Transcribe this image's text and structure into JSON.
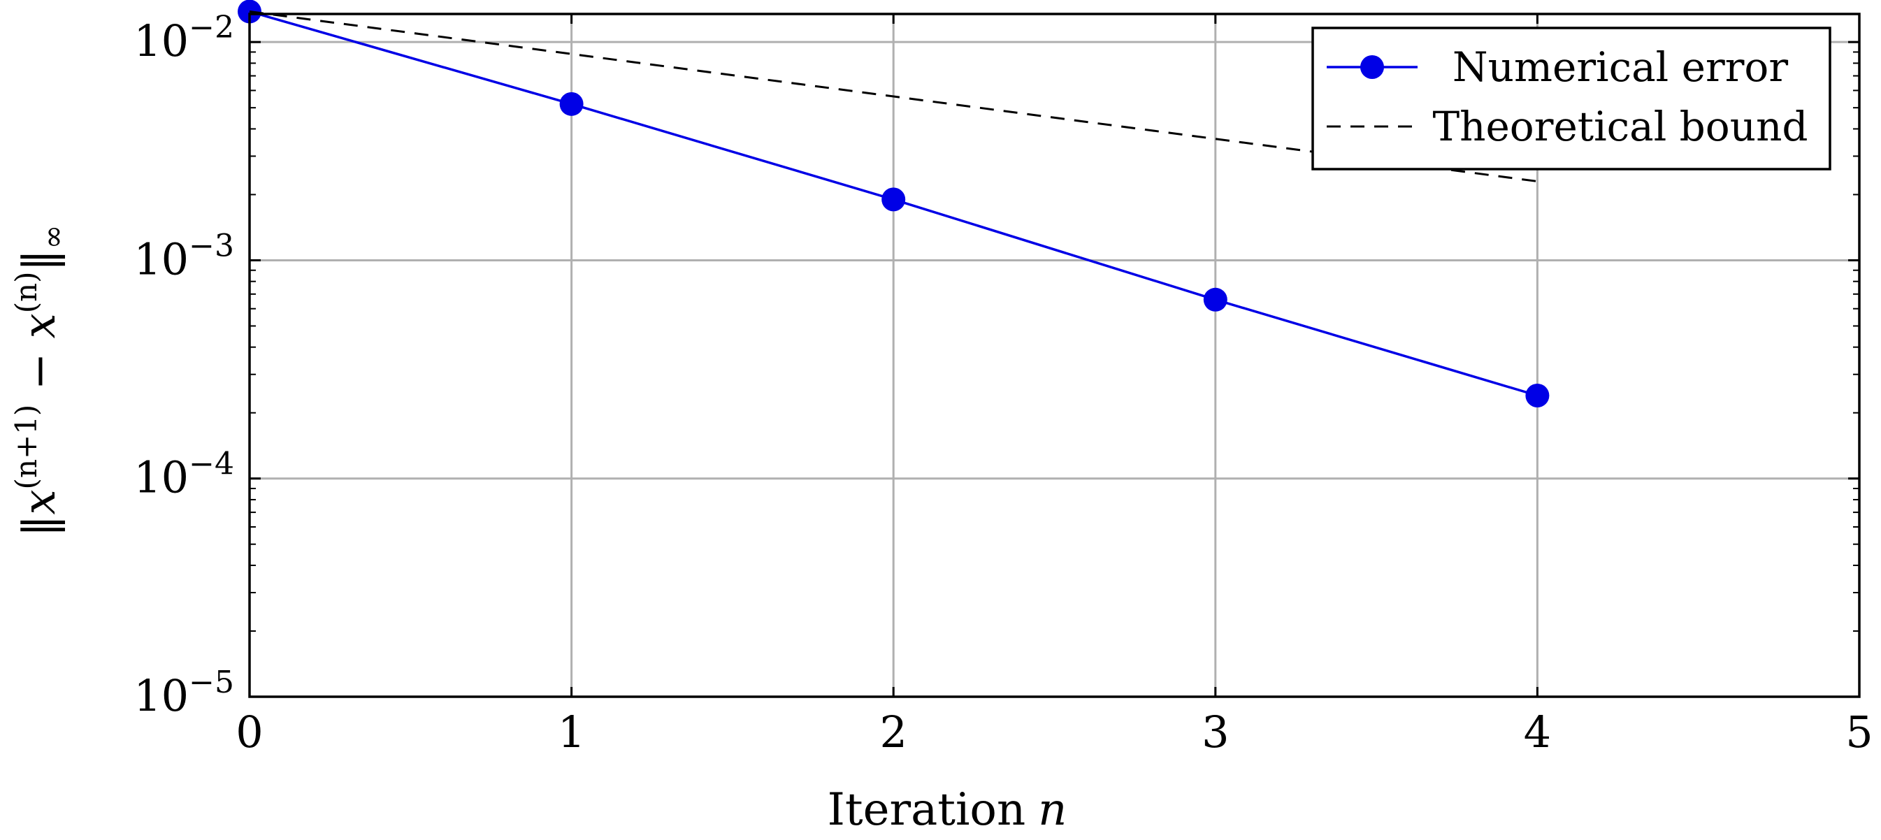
{
  "chart_data": {
    "type": "line",
    "xlabel": "Iteration",
    "xlabel_var": "n",
    "ylabel_parts": {
      "open": "‖",
      "x1": "x",
      "sup1": "(n+1)",
      "minus": " − ",
      "x2": "x",
      "sup2": "(n)",
      "close": "‖",
      "sub": "∞"
    },
    "xlim": [
      0,
      5
    ],
    "ylim": [
      1e-05,
      0.02
    ],
    "yscale": "log",
    "grid": true,
    "legend_position": "top-right",
    "x_ticks": [
      "0",
      "1",
      "2",
      "3",
      "4",
      "5"
    ],
    "y_ticks": [
      {
        "base": "10",
        "exp": "−5",
        "value": 1e-05
      },
      {
        "base": "10",
        "exp": "−4",
        "value": 0.0001
      },
      {
        "base": "10",
        "exp": "−3",
        "value": 0.001
      },
      {
        "base": "10",
        "exp": "−2",
        "value": 0.01
      }
    ],
    "series": [
      {
        "name": "Numerical error",
        "style": "solid-markers",
        "color": "#0000e6",
        "x": [
          0,
          1,
          2,
          3,
          4
        ],
        "y": [
          0.0138,
          0.0052,
          0.0019,
          0.00066,
          0.00024
        ]
      },
      {
        "name": "Theoretical bound",
        "style": "dashed",
        "color": "#000000",
        "x": [
          0,
          4
        ],
        "y": [
          0.0138,
          0.0023
        ]
      }
    ]
  }
}
